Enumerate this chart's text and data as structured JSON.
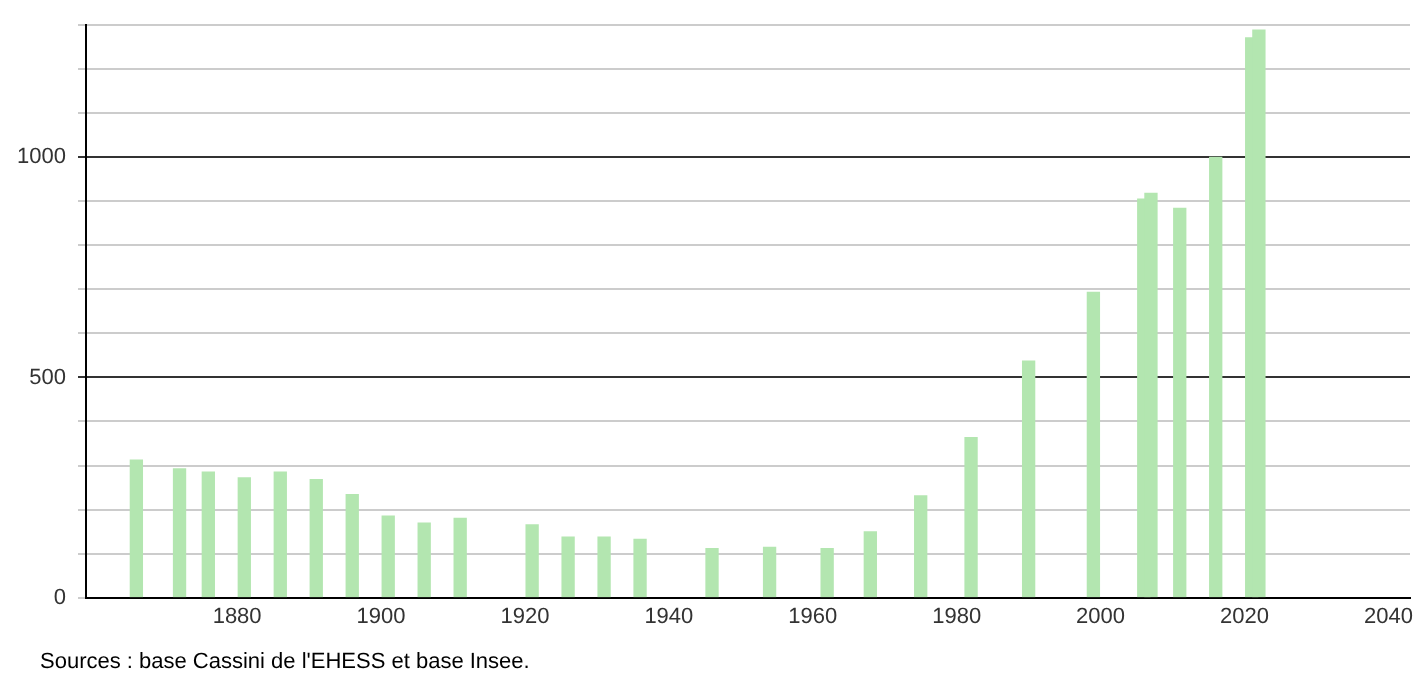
{
  "chart_data": {
    "type": "bar",
    "x": [
      1866,
      1872,
      1876,
      1881,
      1886,
      1891,
      1896,
      1901,
      1906,
      1911,
      1921,
      1926,
      1931,
      1936,
      1946,
      1954,
      1962,
      1968,
      1975,
      1982,
      1990,
      1999,
      2006,
      2007,
      2011,
      2016,
      2021,
      2022
    ],
    "values": [
      312,
      292,
      285,
      272,
      285,
      268,
      234,
      185,
      169,
      180,
      165,
      137,
      137,
      132,
      111,
      114,
      111,
      149,
      231,
      363,
      537,
      693,
      905,
      918,
      884,
      1000,
      1271,
      1289
    ],
    "color": "#b3e6b0",
    "xlim": [
      1859,
      2043
    ],
    "xticks": [
      1880,
      1900,
      1920,
      1940,
      1960,
      1980,
      2000,
      2020,
      2040
    ],
    "ylim": [
      0,
      1300
    ],
    "yticks": [
      0,
      {
        "value": 100,
        "label": null
      },
      {
        "value": 200,
        "label": null
      },
      {
        "value": 300,
        "label": null
      },
      {
        "value": 400,
        "label": null
      },
      500,
      {
        "value": 600,
        "label": null
      },
      {
        "value": 700,
        "label": null
      },
      {
        "value": 800,
        "label": null
      },
      {
        "value": 900,
        "label": null
      },
      1000,
      {
        "value": 1100,
        "label": null
      },
      {
        "value": 1200,
        "label": null
      },
      {
        "value": 1300,
        "label": null
      }
    ],
    "grid": "y",
    "legend": false,
    "annotations": [
      "Sources : base Cassini de l'EHESS et base Insee."
    ]
  }
}
